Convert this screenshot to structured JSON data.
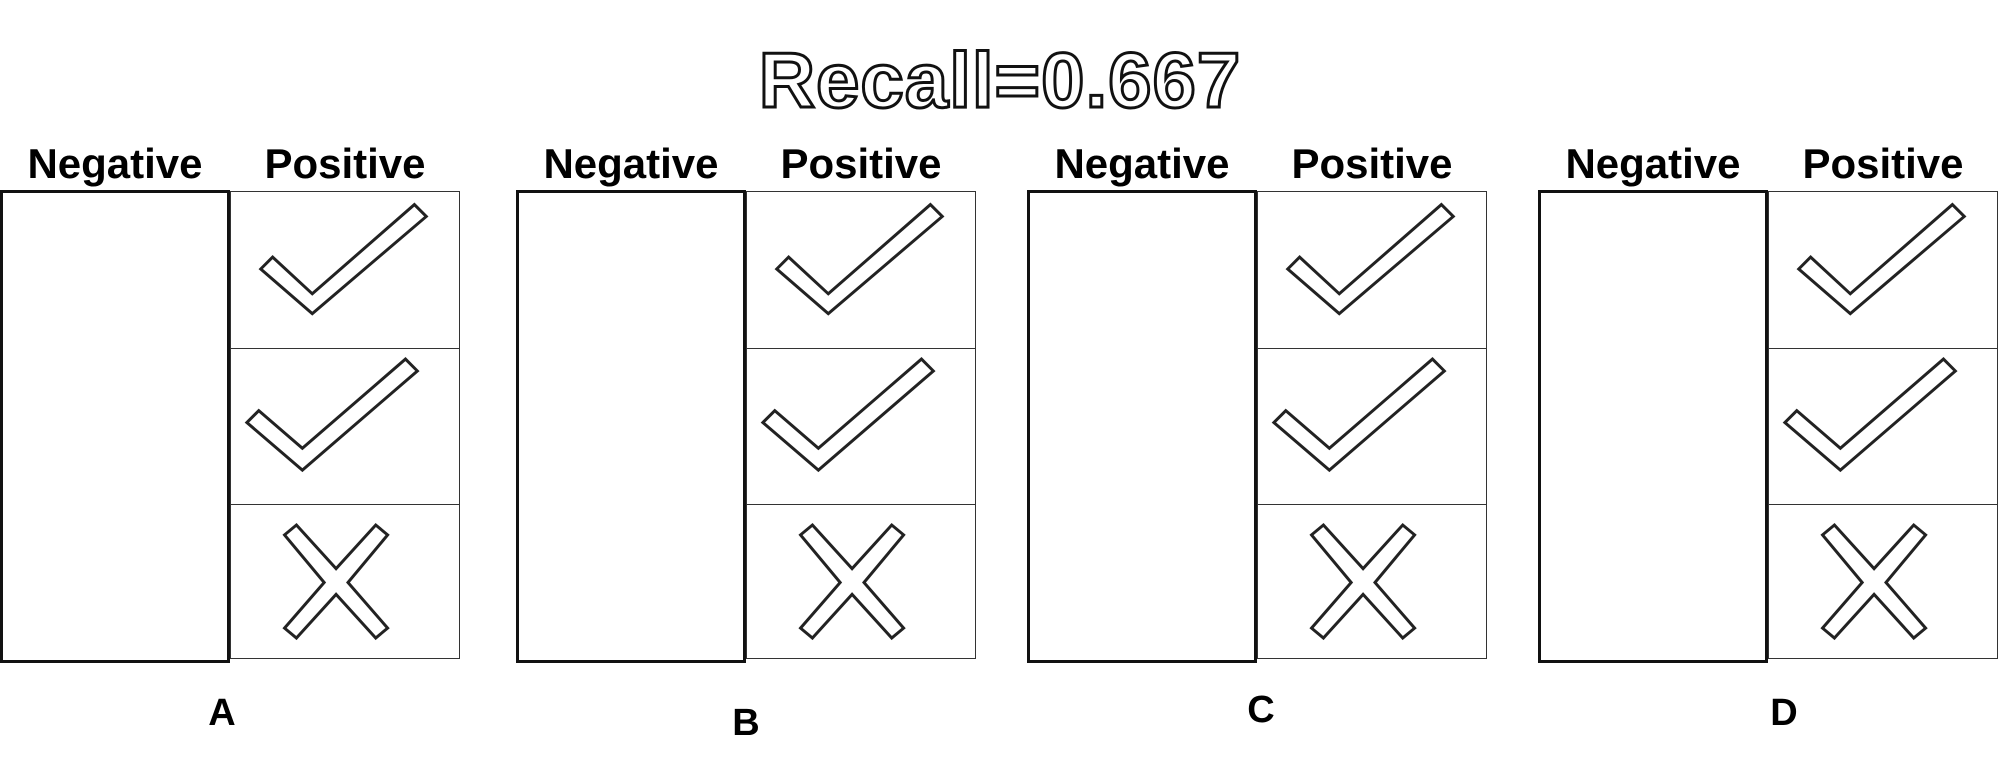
{
  "title": "Recall=0.667",
  "panels": [
    {
      "letter": "A",
      "negative_label": "Negative",
      "positive_label": "Positive",
      "positive_cells": [
        "check-icon",
        "check-icon",
        "cross-icon"
      ]
    },
    {
      "letter": "B",
      "negative_label": "Negative",
      "positive_label": "Positive",
      "positive_cells": [
        "check-icon",
        "check-icon",
        "cross-icon"
      ]
    },
    {
      "letter": "C",
      "negative_label": "Negative",
      "positive_label": "Positive",
      "positive_cells": [
        "check-icon",
        "check-icon",
        "cross-icon"
      ]
    },
    {
      "letter": "D",
      "negative_label": "Negative",
      "positive_label": "Positive",
      "positive_cells": [
        "check-icon",
        "check-icon",
        "cross-icon"
      ]
    }
  ]
}
